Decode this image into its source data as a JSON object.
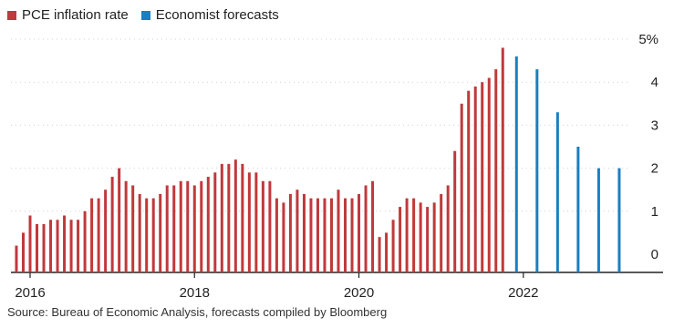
{
  "legend": {
    "items": [
      {
        "label": "PCE inflation rate",
        "color": "#c0393b"
      },
      {
        "label": "Economist forecasts",
        "color": "#1a7fc1"
      }
    ]
  },
  "source": "Source: Bureau of Economic Analysis, forecasts compiled by Bloomberg",
  "chart_data": {
    "type": "bar",
    "title": "",
    "xlabel": "",
    "ylabel": "",
    "ylim": [
      0,
      5
    ],
    "xlim": [
      2016.0,
      2023.5
    ],
    "grid": true,
    "legend_position": "top-left",
    "y_ticks": [
      {
        "value": 0,
        "label": "0"
      },
      {
        "value": 1,
        "label": "1"
      },
      {
        "value": 2,
        "label": "2"
      },
      {
        "value": 3,
        "label": "3"
      },
      {
        "value": 4,
        "label": "4"
      },
      {
        "value": 5,
        "label": "5%"
      }
    ],
    "x_ticks": [
      {
        "value": 2016,
        "label": "2016"
      },
      {
        "value": 2018,
        "label": "2018"
      },
      {
        "value": 2020,
        "label": "2020"
      },
      {
        "value": 2022,
        "label": "2022"
      }
    ],
    "series": [
      {
        "name": "PCE inflation rate",
        "color": "#c0393b",
        "x": [
          "2015-11",
          "2015-12",
          "2016-01",
          "2016-02",
          "2016-03",
          "2016-04",
          "2016-05",
          "2016-06",
          "2016-07",
          "2016-08",
          "2016-09",
          "2016-10",
          "2016-11",
          "2016-12",
          "2017-01",
          "2017-02",
          "2017-03",
          "2017-04",
          "2017-05",
          "2017-06",
          "2017-07",
          "2017-08",
          "2017-09",
          "2017-10",
          "2017-11",
          "2017-12",
          "2018-01",
          "2018-02",
          "2018-03",
          "2018-04",
          "2018-05",
          "2018-06",
          "2018-07",
          "2018-08",
          "2018-09",
          "2018-10",
          "2018-11",
          "2018-12",
          "2019-01",
          "2019-02",
          "2019-03",
          "2019-04",
          "2019-05",
          "2019-06",
          "2019-07",
          "2019-08",
          "2019-09",
          "2019-10",
          "2019-11",
          "2019-12",
          "2020-01",
          "2020-02",
          "2020-03",
          "2020-04",
          "2020-05",
          "2020-06",
          "2020-07",
          "2020-08",
          "2020-09",
          "2020-10",
          "2020-11",
          "2020-12",
          "2021-01",
          "2021-02",
          "2021-03",
          "2021-04",
          "2021-05",
          "2021-06",
          "2021-07",
          "2021-08",
          "2021-09",
          "2021-10"
        ],
        "values": [
          0.2,
          0.5,
          0.9,
          0.7,
          0.7,
          0.8,
          0.8,
          0.9,
          0.8,
          0.8,
          1.0,
          1.3,
          1.3,
          1.5,
          1.8,
          2.0,
          1.7,
          1.6,
          1.4,
          1.3,
          1.3,
          1.4,
          1.6,
          1.6,
          1.7,
          1.7,
          1.6,
          1.7,
          1.8,
          1.9,
          2.1,
          2.1,
          2.2,
          2.1,
          1.9,
          1.9,
          1.7,
          1.7,
          1.3,
          1.2,
          1.4,
          1.5,
          1.4,
          1.3,
          1.3,
          1.3,
          1.3,
          1.5,
          1.3,
          1.3,
          1.4,
          1.6,
          1.7,
          0.4,
          0.5,
          0.8,
          1.1,
          1.3,
          1.3,
          1.2,
          1.1,
          1.2,
          1.4,
          1.6,
          2.4,
          3.5,
          3.8,
          3.9,
          4.0,
          4.1,
          4.3,
          4.8
        ]
      },
      {
        "name": "Economist forecasts",
        "color": "#1a7fc1",
        "x": [
          "2021-12",
          "2022-03",
          "2022-06",
          "2022-09",
          "2022-12",
          "2023-03"
        ],
        "values": [
          4.6,
          4.3,
          3.3,
          2.5,
          2.0,
          2.0
        ]
      }
    ]
  }
}
